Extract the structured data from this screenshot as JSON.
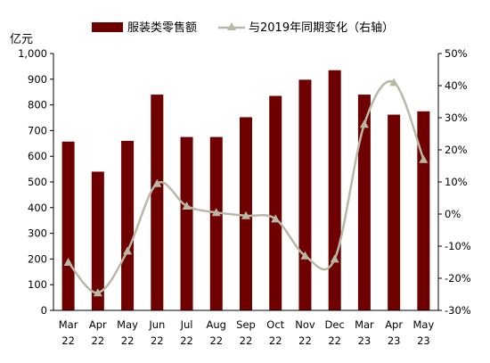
{
  "chart_data": {
    "type": "bar+line",
    "categories": [
      [
        "Mar",
        "22"
      ],
      [
        "Apr",
        "22"
      ],
      [
        "May",
        "22"
      ],
      [
        "Jun",
        "22"
      ],
      [
        "Jul",
        "22"
      ],
      [
        "Aug",
        "22"
      ],
      [
        "Sep",
        "22"
      ],
      [
        "Oct",
        "22"
      ],
      [
        "Nov",
        "22"
      ],
      [
        "Dec",
        "22"
      ],
      [
        "Mar",
        "23"
      ],
      [
        "Apr",
        "23"
      ],
      [
        "May",
        "23"
      ]
    ],
    "left_axis": {
      "unit_label": "亿元",
      "ylim": [
        0,
        1000
      ],
      "ticks": [
        0,
        100,
        200,
        300,
        400,
        500,
        600,
        700,
        800,
        900,
        1000
      ],
      "tick_labels": [
        "0",
        "100",
        "200",
        "300",
        "400",
        "500",
        "600",
        "700",
        "800",
        "900",
        "1,000"
      ]
    },
    "right_axis": {
      "ylim": [
        -30,
        50
      ],
      "ticks": [
        -30,
        -20,
        -10,
        0,
        10,
        20,
        30,
        40,
        50
      ],
      "tick_labels": [
        "-30%",
        "-20%",
        "-10%",
        "0%",
        "10%",
        "20%",
        "30%",
        "40%",
        "50%"
      ]
    },
    "series": [
      {
        "name": "服装类零售额",
        "type": "bar",
        "axis": "left",
        "color": "#6e0000",
        "values": [
          657,
          540,
          660,
          840,
          675,
          675,
          752,
          835,
          898,
          935,
          840,
          762,
          775
        ]
      },
      {
        "name": "与2019年同期变化（右轴）",
        "type": "line",
        "axis": "right",
        "color": "#b9b8a6",
        "marker": "triangle",
        "values": [
          -15,
          -24.5,
          -11.5,
          9.5,
          2.5,
          0.5,
          -0.5,
          -1.5,
          -13,
          -14,
          28,
          41,
          17
        ]
      }
    ],
    "legend_placement": "top",
    "grid": false
  }
}
